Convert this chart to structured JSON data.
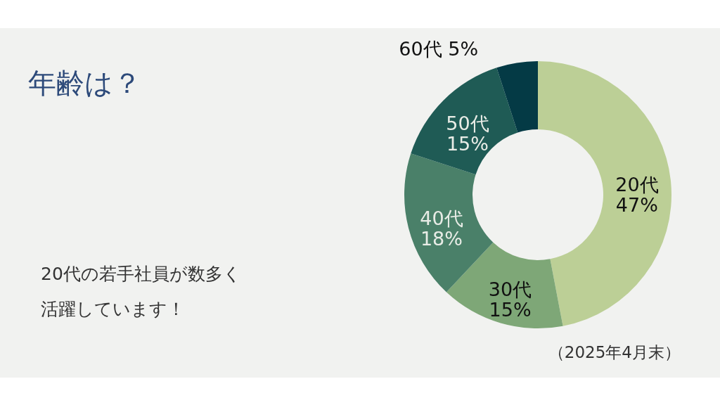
{
  "chart_data": {
    "type": "donut",
    "title": "年齢は？",
    "categories": [
      "20代",
      "30代",
      "40代",
      "50代",
      "60代"
    ],
    "values": [
      47,
      15,
      18,
      15,
      5
    ],
    "value_labels": [
      "47%",
      "15%",
      "18%",
      "15%",
      "5%"
    ],
    "colors": [
      "#bccf96",
      "#7ea777",
      "#4a8069",
      "#1f5b55",
      "#043a45"
    ],
    "annotations": [
      "20代の若手社員が数多く",
      "活躍しています！",
      "（2025年4月末）"
    ]
  }
}
